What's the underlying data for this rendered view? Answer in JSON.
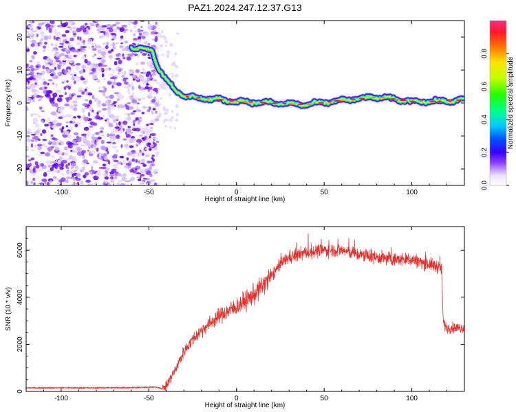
{
  "title": "PAZ1.2024.247.12.37.G13",
  "chart_data": [
    {
      "type": "heatmap",
      "title": "PAZ1.2024.247.12.37.G13",
      "xlabel": "Height of straight line (km)",
      "ylabel": "Frequency (Hz)",
      "xlim": [
        -120,
        130
      ],
      "ylim": [
        -25,
        25
      ],
      "xticks": [
        -100,
        -50,
        0,
        50,
        100
      ],
      "yticks": [
        -20,
        -10,
        0,
        10,
        20
      ],
      "colorbar": {
        "label": "Normalized spectral amplitude",
        "range": [
          0,
          1
        ],
        "ticks": [
          "0.0",
          "0.2",
          "0.4",
          "0.6",
          "0.8"
        ],
        "tick_values": [
          0.0,
          0.2,
          0.4,
          0.6,
          0.8
        ]
      },
      "ridge": {
        "x": [
          -60,
          -48,
          -45,
          -40,
          -35,
          -30,
          -20,
          0,
          20,
          40,
          60,
          80,
          100,
          120,
          130
        ],
        "y": [
          17,
          16,
          11,
          7,
          4,
          2,
          1.5,
          0.5,
          0,
          -0.5,
          0.8,
          1.8,
          0.5,
          0.5,
          1
        ]
      }
    },
    {
      "type": "line",
      "xlabel": "Height of straight line (km)",
      "ylabel": "SNR (10 * v/v)",
      "xlim": [
        -120,
        130
      ],
      "ylim": [
        0,
        7000
      ],
      "xticks": [
        -100,
        -50,
        0,
        50,
        100
      ],
      "yticks": [
        0,
        2000,
        4000,
        6000
      ],
      "color": "#e8302a",
      "series": [
        {
          "x": [
            -120,
            -100,
            -80,
            -60,
            -50,
            -45,
            -42,
            -40,
            -35,
            -30,
            -25,
            -20,
            -10,
            0,
            10,
            20,
            25,
            30,
            40,
            50,
            60,
            70,
            80,
            90,
            100,
            110,
            115,
            117,
            118,
            120,
            125,
            130
          ],
          "values": [
            150,
            150,
            150,
            160,
            180,
            180,
            100,
            250,
            900,
            1700,
            2200,
            2600,
            3200,
            3600,
            4100,
            4900,
            5400,
            5700,
            5900,
            6000,
            6000,
            5800,
            5700,
            5600,
            5600,
            5400,
            5300,
            5200,
            2900,
            2700,
            2700,
            2700
          ]
        }
      ]
    }
  ]
}
